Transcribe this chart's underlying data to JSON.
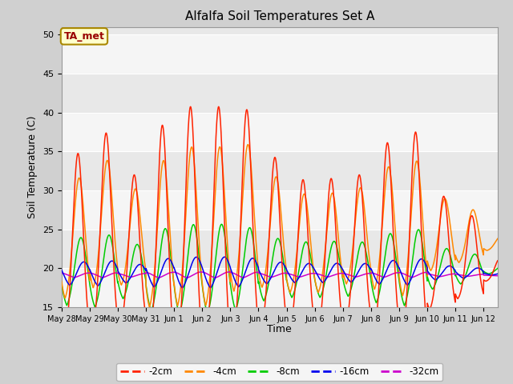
{
  "title": "Alfalfa Soil Temperatures Set A",
  "xlabel": "Time",
  "ylabel": "Soil Temperature (C)",
  "ylim": [
    15,
    51
  ],
  "yticks": [
    15,
    20,
    25,
    30,
    35,
    40,
    45,
    50
  ],
  "colors": {
    "-2cm": "#ff2200",
    "-4cm": "#ff8800",
    "-8cm": "#00cc00",
    "-16cm": "#0000ee",
    "-32cm": "#cc00cc"
  },
  "legend_label": "TA_met",
  "x_tick_labels": [
    "May 28",
    "May 29",
    "May 30",
    "May 31",
    "Jun 1",
    "Jun 2",
    "Jun 3",
    "Jun 4",
    "Jun 5",
    "Jun 6",
    "Jun 7",
    "Jun 8",
    "Jun 9",
    "Jun 10",
    "Jun 11",
    "Jun 12"
  ],
  "fig_bg": "#d0d0d0",
  "plot_bg": "#e8e8e8",
  "alt_band_color": "#f5f5f5",
  "grid_color": "#ffffff"
}
